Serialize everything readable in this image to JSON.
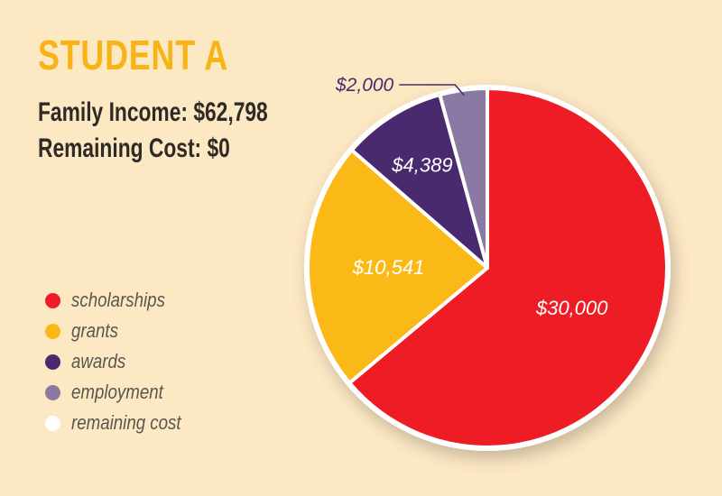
{
  "title": "STUDENT A",
  "family_income": "Family Income: $62,798",
  "remaining_cost": "Remaining Cost: $0",
  "colors": {
    "scholarships": "#ee1c25",
    "grants": "#fbb917",
    "awards": "#4a2a6e",
    "employment": "#8a7aa3",
    "remaining cost": "#ffffff",
    "title": "#f6b417",
    "background": "#fde8c4"
  },
  "legend": [
    {
      "label": "scholarships",
      "color": "#ee1c25"
    },
    {
      "label": "grants",
      "color": "#fbb917"
    },
    {
      "label": "awards",
      "color": "#4a2a6e"
    },
    {
      "label": "employment",
      "color": "#8a7aa3"
    },
    {
      "label": "remaining cost",
      "color": "#ffffff"
    }
  ],
  "chart_data": {
    "type": "pie",
    "categories": [
      "scholarships",
      "grants",
      "awards",
      "employment",
      "remaining cost"
    ],
    "values": [
      30000,
      10541,
      4389,
      2000,
      0
    ],
    "data_labels": [
      "$30,000",
      "$10,541",
      "$4,389",
      "$2,000",
      ""
    ],
    "colors": [
      "#ee1c25",
      "#fbb917",
      "#4a2a6e",
      "#8a7aa3",
      "#ffffff"
    ],
    "legend_position": "left"
  }
}
